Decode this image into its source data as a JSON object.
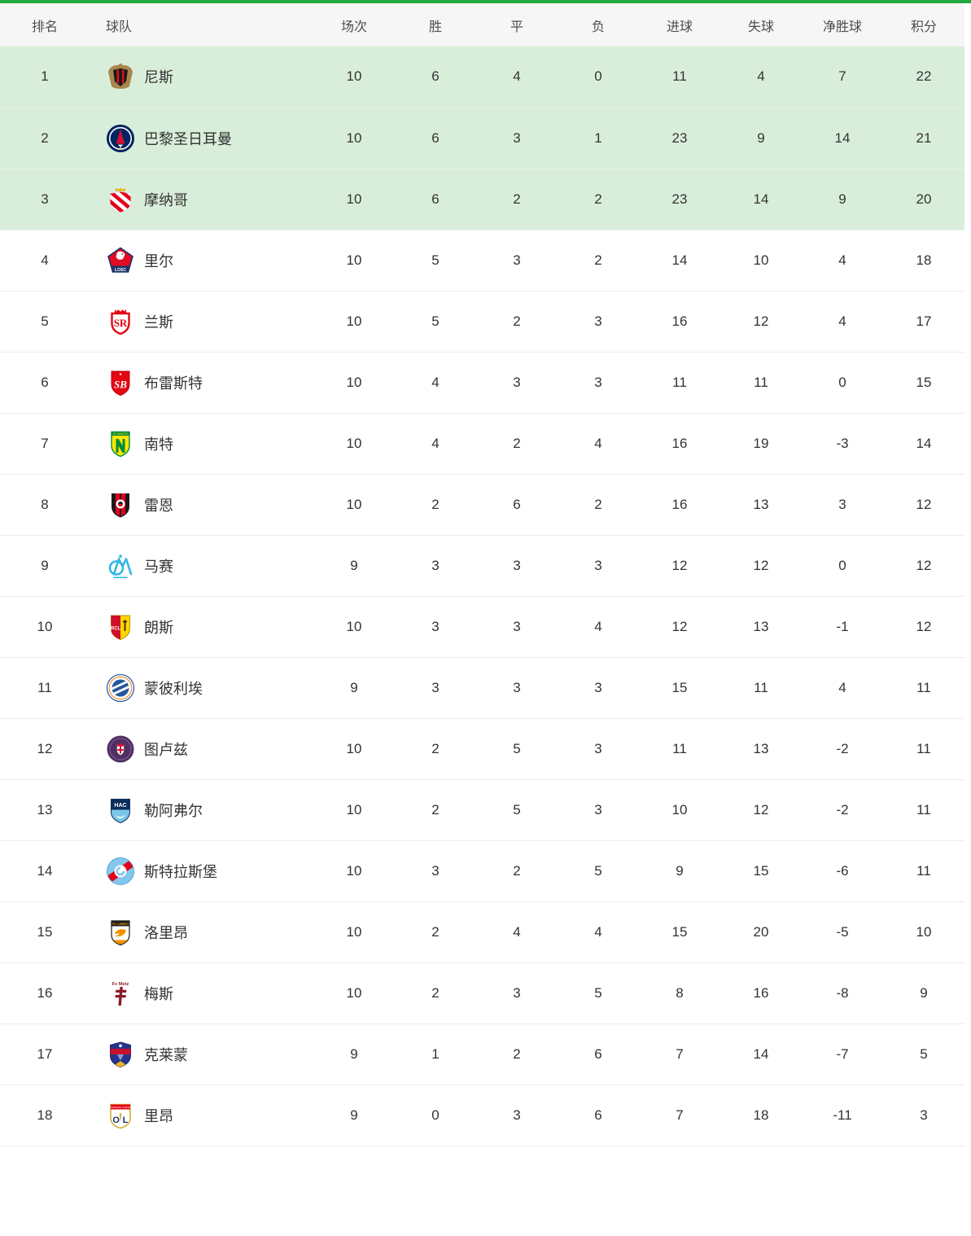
{
  "page": {
    "accent_color": "#23a83c",
    "highlight_color": "#d9eeda"
  },
  "table": {
    "columns": [
      {
        "key": "rank",
        "label": "排名"
      },
      {
        "key": "team",
        "label": "球队"
      },
      {
        "key": "played",
        "label": "场次"
      },
      {
        "key": "win",
        "label": "胜"
      },
      {
        "key": "draw",
        "label": "平"
      },
      {
        "key": "loss",
        "label": "负"
      },
      {
        "key": "goals_for",
        "label": "进球"
      },
      {
        "key": "goals_against",
        "label": "失球"
      },
      {
        "key": "goal_diff",
        "label": "净胜球"
      },
      {
        "key": "points",
        "label": "积分"
      }
    ],
    "rows": [
      {
        "rank": "1",
        "team": "尼斯",
        "logo": "nice-crest",
        "highlight": true,
        "stats": [
          "10",
          "6",
          "4",
          "0",
          "11",
          "4",
          "7",
          "22"
        ]
      },
      {
        "rank": "2",
        "team": "巴黎圣日耳曼",
        "logo": "psg-crest",
        "highlight": true,
        "stats": [
          "10",
          "6",
          "3",
          "1",
          "23",
          "9",
          "14",
          "21"
        ]
      },
      {
        "rank": "3",
        "team": "摩纳哥",
        "logo": "monaco-crest",
        "highlight": true,
        "stats": [
          "10",
          "6",
          "2",
          "2",
          "23",
          "14",
          "9",
          "20"
        ]
      },
      {
        "rank": "4",
        "team": "里尔",
        "logo": "lille-crest",
        "highlight": false,
        "stats": [
          "10",
          "5",
          "3",
          "2",
          "14",
          "10",
          "4",
          "18"
        ]
      },
      {
        "rank": "5",
        "team": "兰斯",
        "logo": "reims-crest",
        "highlight": false,
        "stats": [
          "10",
          "5",
          "2",
          "3",
          "16",
          "12",
          "4",
          "17"
        ]
      },
      {
        "rank": "6",
        "team": "布雷斯特",
        "logo": "brest-crest",
        "highlight": false,
        "stats": [
          "10",
          "4",
          "3",
          "3",
          "11",
          "11",
          "0",
          "15"
        ]
      },
      {
        "rank": "7",
        "team": "南特",
        "logo": "nantes-crest",
        "highlight": false,
        "stats": [
          "10",
          "4",
          "2",
          "4",
          "16",
          "19",
          "-3",
          "14"
        ]
      },
      {
        "rank": "8",
        "team": "雷恩",
        "logo": "rennes-crest",
        "highlight": false,
        "stats": [
          "10",
          "2",
          "6",
          "2",
          "16",
          "13",
          "3",
          "12"
        ]
      },
      {
        "rank": "9",
        "team": "马赛",
        "logo": "marseille-crest",
        "highlight": false,
        "stats": [
          "9",
          "3",
          "3",
          "3",
          "12",
          "12",
          "0",
          "12"
        ]
      },
      {
        "rank": "10",
        "team": "朗斯",
        "logo": "lens-crest",
        "highlight": false,
        "stats": [
          "10",
          "3",
          "3",
          "4",
          "12",
          "13",
          "-1",
          "12"
        ]
      },
      {
        "rank": "11",
        "team": "蒙彼利埃",
        "logo": "montpellier-crest",
        "highlight": false,
        "stats": [
          "9",
          "3",
          "3",
          "3",
          "15",
          "11",
          "4",
          "11"
        ]
      },
      {
        "rank": "12",
        "team": "图卢兹",
        "logo": "toulouse-crest",
        "highlight": false,
        "stats": [
          "10",
          "2",
          "5",
          "3",
          "11",
          "13",
          "-2",
          "11"
        ]
      },
      {
        "rank": "13",
        "team": "勒阿弗尔",
        "logo": "lehavre-crest",
        "highlight": false,
        "stats": [
          "10",
          "2",
          "5",
          "3",
          "10",
          "12",
          "-2",
          "11"
        ]
      },
      {
        "rank": "14",
        "team": "斯特拉斯堡",
        "logo": "strasbourg-crest",
        "highlight": false,
        "stats": [
          "10",
          "3",
          "2",
          "5",
          "9",
          "15",
          "-6",
          "11"
        ]
      },
      {
        "rank": "15",
        "team": "洛里昂",
        "logo": "lorient-crest",
        "highlight": false,
        "stats": [
          "10",
          "2",
          "4",
          "4",
          "15",
          "20",
          "-5",
          "10"
        ]
      },
      {
        "rank": "16",
        "team": "梅斯",
        "logo": "metz-crest",
        "highlight": false,
        "stats": [
          "10",
          "2",
          "3",
          "5",
          "8",
          "16",
          "-8",
          "9"
        ]
      },
      {
        "rank": "17",
        "team": "克莱蒙",
        "logo": "clermont-crest",
        "highlight": false,
        "stats": [
          "9",
          "1",
          "2",
          "6",
          "7",
          "14",
          "-7",
          "5"
        ]
      },
      {
        "rank": "18",
        "team": "里昂",
        "logo": "lyon-crest",
        "highlight": false,
        "stats": [
          "9",
          "0",
          "3",
          "6",
          "7",
          "18",
          "-11",
          "3"
        ]
      }
    ]
  }
}
